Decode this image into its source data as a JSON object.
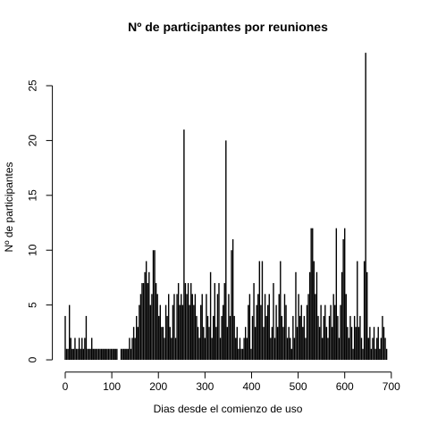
{
  "chart_data": {
    "type": "h",
    "title": "Nº de participantes por reuniones",
    "x_label": "Dias desde el comienzo de uso",
    "y_label": "Nº de participantes",
    "color": "#000000",
    "x": [
      0,
      3,
      6,
      9,
      12,
      15,
      18,
      21,
      24,
      27,
      30,
      33,
      36,
      39,
      42,
      45,
      48,
      51,
      54,
      57,
      60,
      63,
      66,
      69,
      72,
      75,
      78,
      81,
      84,
      87,
      90,
      93,
      96,
      99,
      102,
      105,
      108,
      111,
      120,
      123,
      126,
      129,
      132,
      135,
      138,
      141,
      144,
      147,
      150,
      153,
      156,
      159,
      162,
      165,
      168,
      171,
      174,
      177,
      180,
      183,
      186,
      189,
      192,
      195,
      198,
      201,
      204,
      207,
      210,
      213,
      216,
      219,
      222,
      225,
      228,
      231,
      234,
      237,
      240,
      243,
      246,
      249,
      252,
      255,
      258,
      261,
      264,
      267,
      270,
      273,
      276,
      279,
      282,
      285,
      288,
      291,
      294,
      297,
      300,
      303,
      306,
      309,
      312,
      315,
      318,
      321,
      324,
      327,
      330,
      333,
      336,
      339,
      342,
      345,
      348,
      351,
      354,
      357,
      360,
      363,
      366,
      369,
      372,
      375,
      378,
      381,
      384,
      387,
      390,
      393,
      396,
      399,
      402,
      405,
      408,
      411,
      414,
      417,
      420,
      423,
      426,
      429,
      432,
      435,
      438,
      441,
      444,
      447,
      450,
      453,
      456,
      459,
      462,
      465,
      468,
      471,
      474,
      477,
      480,
      483,
      486,
      489,
      492,
      495,
      498,
      501,
      504,
      507,
      510,
      513,
      516,
      519,
      522,
      525,
      528,
      531,
      534,
      537,
      540,
      543,
      546,
      549,
      552,
      555,
      558,
      561,
      564,
      567,
      570,
      573,
      576,
      579,
      582,
      585,
      588,
      591,
      594,
      597,
      600,
      603,
      606,
      609,
      612,
      615,
      618,
      621,
      624,
      627,
      630,
      633,
      636,
      639,
      642,
      645,
      648,
      651,
      654,
      657,
      660,
      663,
      666,
      669,
      672,
      675,
      678,
      681,
      684,
      687,
      690
    ],
    "values": [
      4,
      1,
      1,
      5,
      2,
      1,
      1,
      2,
      1,
      1,
      2,
      1,
      2,
      1,
      2,
      4,
      1,
      1,
      1,
      2,
      1,
      1,
      1,
      1,
      1,
      1,
      1,
      1,
      1,
      1,
      1,
      1,
      1,
      1,
      1,
      1,
      1,
      1,
      1,
      1,
      1,
      1,
      1,
      1,
      2,
      1,
      2,
      3,
      2,
      4,
      3,
      5,
      6,
      7,
      7,
      8,
      9,
      7,
      8,
      5,
      6,
      10,
      10,
      7,
      6,
      4,
      5,
      3,
      3,
      2,
      5,
      4,
      6,
      3,
      2,
      5,
      6,
      2,
      6,
      7,
      5,
      6,
      5,
      21,
      7,
      6,
      7,
      5,
      7,
      6,
      5,
      6,
      4,
      3,
      2,
      5,
      6,
      3,
      2,
      6,
      4,
      3,
      8,
      2,
      4,
      7,
      3,
      6,
      7,
      2,
      4,
      5,
      7,
      20,
      3,
      6,
      4,
      10,
      11,
      4,
      2,
      3,
      1,
      2,
      1,
      1,
      2,
      3,
      2,
      5,
      6,
      1,
      4,
      7,
      3,
      5,
      6,
      9,
      5,
      9,
      3,
      6,
      4,
      5,
      6,
      2,
      3,
      7,
      2,
      5,
      3,
      6,
      9,
      4,
      3,
      6,
      5,
      2,
      3,
      2,
      1,
      4,
      2,
      8,
      3,
      6,
      4,
      5,
      3,
      4,
      2,
      5,
      6,
      8,
      12,
      12,
      9,
      6,
      8,
      4,
      3,
      5,
      2,
      4,
      5,
      3,
      2,
      4,
      5,
      3,
      6,
      5,
      12,
      4,
      2,
      5,
      8,
      11,
      12,
      6,
      3,
      2,
      4,
      3,
      1,
      4,
      3,
      9,
      3,
      4,
      2,
      1,
      9,
      28,
      8,
      2,
      3,
      1,
      2,
      3,
      1,
      2,
      3,
      1,
      2,
      4,
      3,
      2,
      1
    ],
    "xlim": [
      -27.6,
      717.6
    ],
    "ylim": [
      -1.12,
      29.12
    ],
    "xticks": [
      0,
      100,
      200,
      300,
      400,
      500,
      600,
      700
    ],
    "yticks": [
      0,
      5,
      10,
      15,
      20,
      25
    ]
  }
}
